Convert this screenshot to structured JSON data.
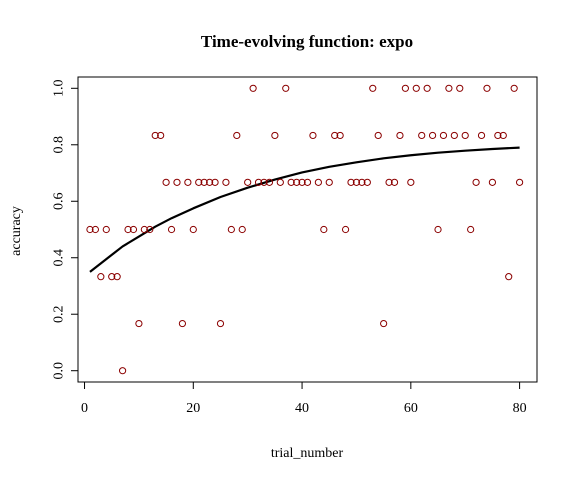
{
  "chart_data": {
    "type": "scatter",
    "title": "Time-evolving function: expo",
    "xlabel": "trial_number",
    "ylabel": "accuracy",
    "xlim": [
      -1.2,
      83.2
    ],
    "ylim": [
      -0.04,
      1.04
    ],
    "x_ticks": [
      0,
      20,
      40,
      60,
      80
    ],
    "y_ticks": [
      0.0,
      0.2,
      0.4,
      0.6,
      0.8,
      1.0
    ],
    "x_tick_labels": [
      "0",
      "20",
      "40",
      "60",
      "80"
    ],
    "y_tick_labels": [
      "0.0",
      "0.2",
      "0.4",
      "0.6",
      "0.8",
      "1.0"
    ],
    "grid": false,
    "point_color": "#8b0000",
    "line_color": "#000000",
    "series": [
      {
        "kind": "points",
        "x": [
          1,
          2,
          3,
          4,
          5,
          6,
          7,
          8,
          9,
          10,
          11,
          12,
          13,
          14,
          15,
          16,
          17,
          18,
          19,
          20,
          21,
          22,
          23,
          24,
          25,
          26,
          27,
          28,
          29,
          30,
          31,
          32,
          33,
          34,
          35,
          36,
          37,
          38,
          39,
          40,
          41,
          42,
          43,
          44,
          45,
          46,
          47,
          48,
          49,
          50,
          51,
          52,
          53,
          54,
          55,
          56,
          57,
          58,
          59,
          60,
          61,
          62,
          63,
          64,
          65,
          66,
          67,
          68,
          69,
          70,
          71,
          72,
          73,
          74,
          75,
          76,
          77,
          78,
          79,
          80
        ],
        "y": [
          0.5,
          0.5,
          0.333,
          0.5,
          0.333,
          0.333,
          0.0,
          0.5,
          0.5,
          0.167,
          0.5,
          0.5,
          0.833,
          0.833,
          0.667,
          0.5,
          0.667,
          0.167,
          0.667,
          0.5,
          0.667,
          0.667,
          0.667,
          0.667,
          0.167,
          0.667,
          0.5,
          0.833,
          0.5,
          0.667,
          1.0,
          0.667,
          0.667,
          0.667,
          0.833,
          0.667,
          1.0,
          0.667,
          0.667,
          0.667,
          0.667,
          0.833,
          0.667,
          0.5,
          0.667,
          0.833,
          0.833,
          0.5,
          0.667,
          0.667,
          0.667,
          0.667,
          1.0,
          0.833,
          0.167,
          0.667,
          0.667,
          0.833,
          1.0,
          0.667,
          1.0,
          0.833,
          1.0,
          0.833,
          0.5,
          0.833,
          1.0,
          0.833,
          1.0,
          0.833,
          0.5,
          0.667,
          0.833,
          1.0,
          0.667,
          0.833,
          0.833,
          0.333,
          1.0,
          0.667
        ]
      },
      {
        "kind": "line",
        "x": [
          1,
          3,
          5,
          7,
          10,
          13,
          16,
          20,
          25,
          30,
          35,
          40,
          45,
          50,
          55,
          60,
          65,
          70,
          75,
          80
        ],
        "y": [
          0.35,
          0.38,
          0.41,
          0.44,
          0.475,
          0.51,
          0.54,
          0.575,
          0.615,
          0.648,
          0.677,
          0.702,
          0.722,
          0.738,
          0.752,
          0.763,
          0.772,
          0.779,
          0.785,
          0.79
        ]
      }
    ]
  }
}
